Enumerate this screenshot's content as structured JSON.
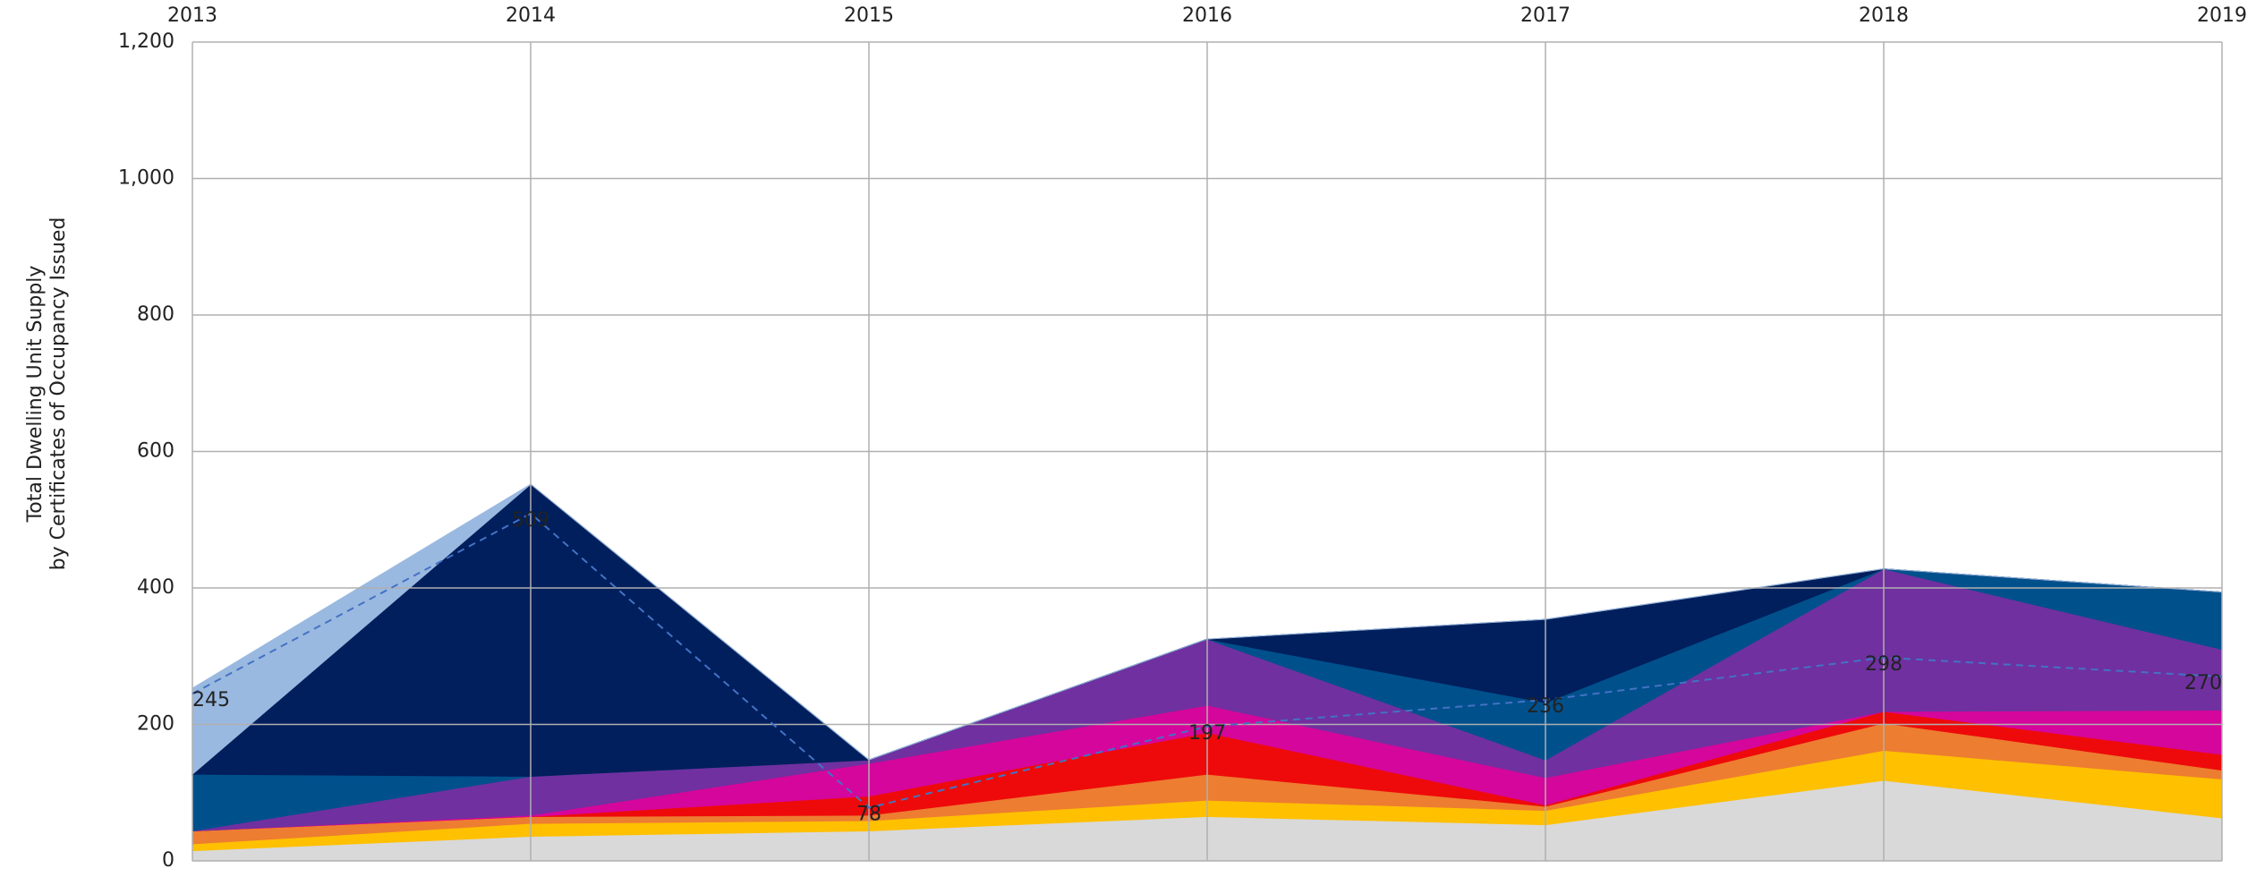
{
  "chart_data": {
    "type": "stacked_area",
    "y_label": [
      "Total Dwelling Unit Supply",
      "by Certificates of Occupancy Issued"
    ],
    "x": [
      2013,
      2014,
      2015,
      2016,
      2017,
      2018,
      2019
    ],
    "xlim": [
      2013,
      2019
    ],
    "ylim": [
      0,
      1200
    ],
    "yticks": [
      0,
      200,
      400,
      600,
      800,
      {
        "value": 1000,
        "label": "1,000"
      },
      {
        "value": 1200,
        "label": "1,200"
      }
    ],
    "grid": true,
    "series": [
      {
        "color": "#d9d9d9",
        "values": [
          15,
          36,
          44,
          65,
          53,
          118,
          63
        ]
      },
      {
        "color": "#ffc000",
        "values": [
          10,
          19,
          15,
          24,
          21,
          44,
          57
        ]
      },
      {
        "color": "#ed7d31",
        "values": [
          19,
          10,
          8,
          38,
          6,
          40,
          13
        ]
      },
      {
        "color": "#ee0a0a",
        "values": [
          0,
          0,
          28,
          61,
          2,
          17,
          23
        ]
      },
      {
        "color": "#d5069b",
        "values": [
          0,
          2,
          48,
          40,
          40,
          0,
          65
        ]
      },
      {
        "color": "#7030a0",
        "values": [
          0,
          57,
          5,
          97,
          26,
          209,
          89
        ]
      },
      {
        "color": "#00508c",
        "values": [
          83,
          0,
          0,
          0,
          84,
          0,
          84
        ]
      },
      {
        "color": "#001f5c",
        "values": [
          0,
          428,
          0,
          0,
          122,
          0,
          0
        ]
      },
      {
        "color": "#9ab9e0",
        "values": [
          126,
          0,
          0,
          0,
          0,
          0,
          0
        ]
      }
    ],
    "line": {
      "color": "#4472c4",
      "style": "dashed",
      "values": [
        245,
        509,
        78,
        197,
        236,
        298,
        270
      ]
    }
  }
}
